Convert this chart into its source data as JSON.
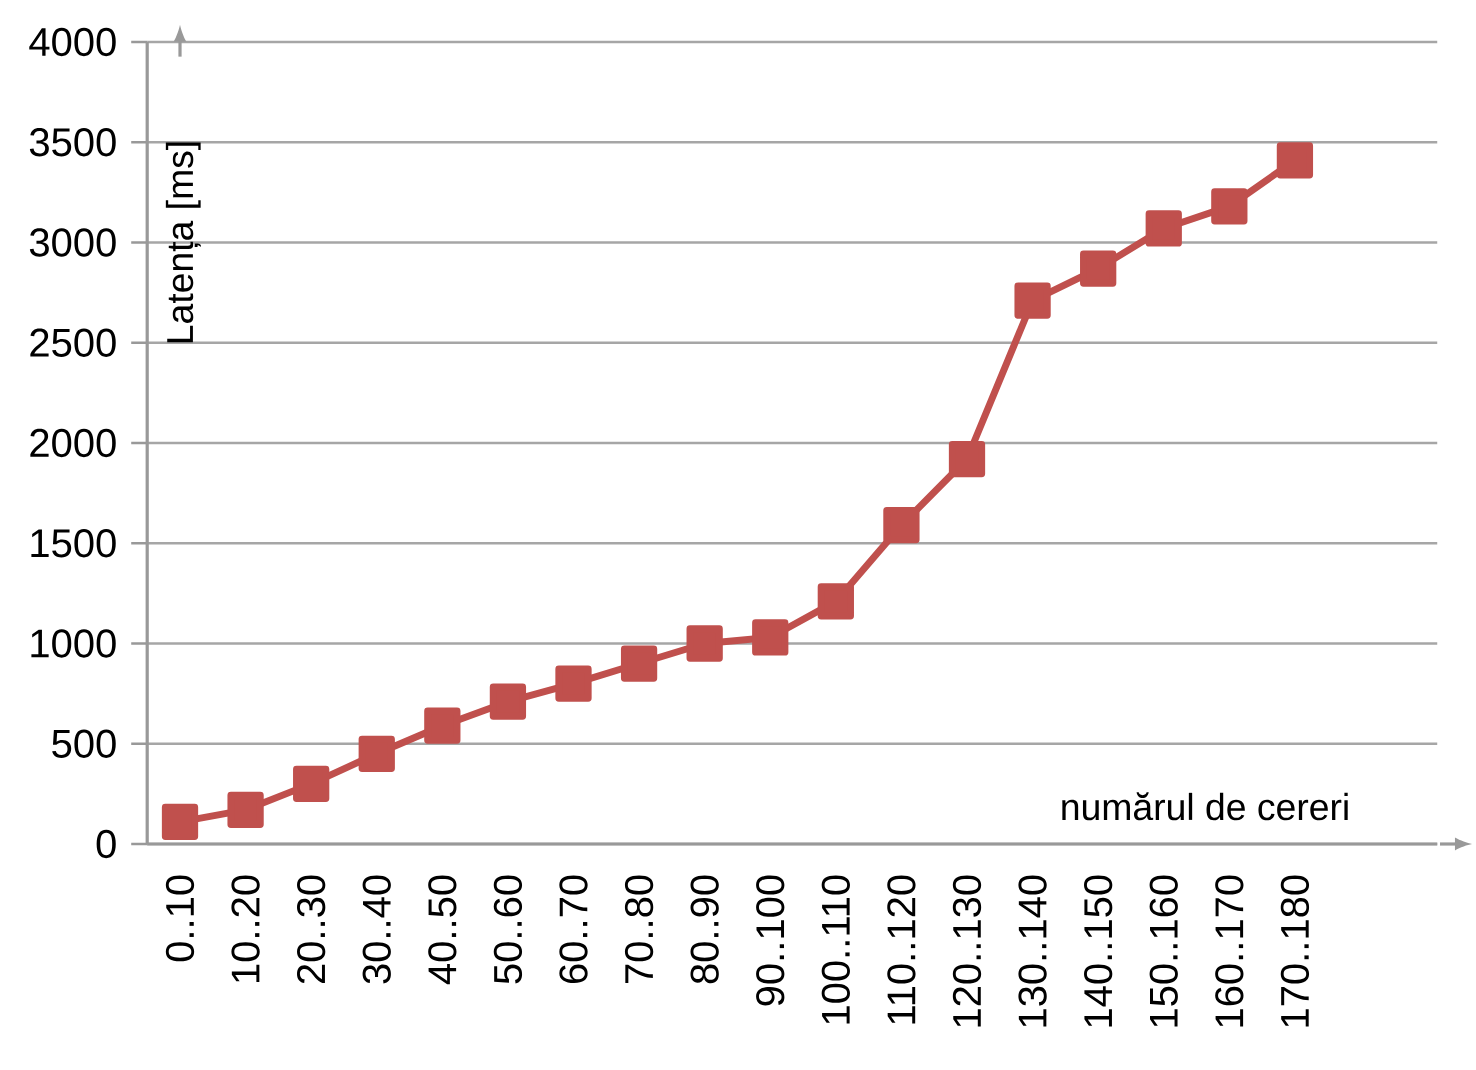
{
  "chart_data": {
    "type": "line",
    "xlabel": "numărul de cereri",
    "ylabel": "Latența [ms]",
    "categories": [
      "0..10",
      "10..20",
      "20..30",
      "30..40",
      "40..50",
      "50..60",
      "60..70",
      "70..80",
      "80..90",
      "90..100",
      "100..110",
      "110..120",
      "120..130",
      "130..140",
      "140..150",
      "150..160",
      "160..170",
      "170..180"
    ],
    "series": [
      {
        "color": "#c0504d",
        "values": [
          110,
          170,
          300,
          450,
          590,
          710,
          800,
          900,
          1000,
          1030,
          1210,
          1590,
          1920,
          2710,
          2870,
          3070,
          3180,
          3410
        ]
      }
    ],
    "ylim": [
      0,
      4000
    ],
    "yticks": [
      0,
      500,
      1000,
      1500,
      2000,
      2500,
      3000,
      3500,
      4000
    ],
    "grid": "y",
    "marker": "square",
    "line_style": "solid"
  }
}
